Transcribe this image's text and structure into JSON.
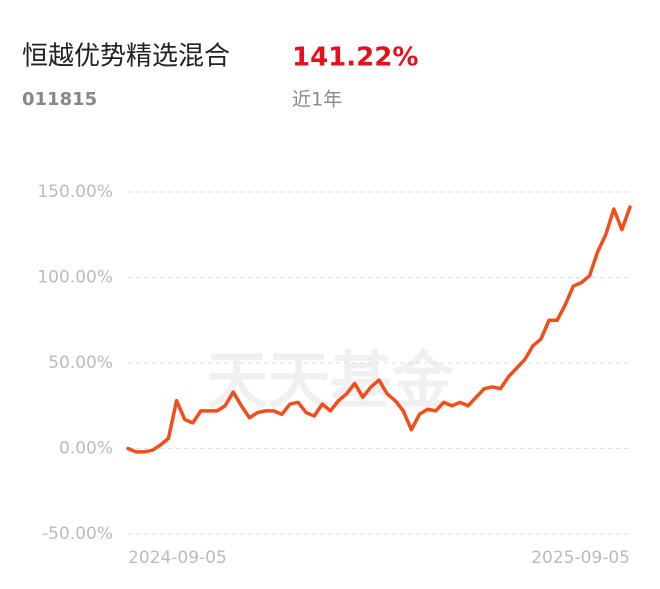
{
  "chart_data": {
    "type": "line",
    "title": "恒越优势精选混合",
    "return": "141.22%",
    "subtitle": "011815",
    "period": "近1年",
    "watermark": "天天基金",
    "categories": [
      "2024-09-05",
      null,
      null,
      null,
      null,
      null,
      null,
      null,
      null,
      null,
      null,
      null,
      null,
      null,
      null,
      null,
      null,
      null,
      null,
      null,
      null,
      null,
      null,
      null,
      null,
      null,
      null,
      null,
      null,
      null,
      null,
      null,
      null,
      null,
      null,
      null,
      null,
      null,
      null,
      null,
      null,
      null,
      null,
      null,
      null,
      null,
      null,
      null,
      null,
      null,
      null,
      null,
      null,
      null,
      null,
      null,
      null,
      null,
      null,
      null,
      null,
      null,
      "2025-09-05"
    ],
    "values": [
      0,
      -2,
      -2,
      -1,
      2,
      6,
      28,
      17,
      15,
      22,
      22,
      22,
      25,
      33,
      25,
      18,
      21,
      22,
      22,
      20,
      26,
      27,
      21,
      19,
      26,
      22,
      28,
      32,
      38,
      30,
      36,
      40,
      32,
      28,
      22,
      11,
      20,
      23,
      22,
      27,
      25,
      27,
      25,
      30,
      35,
      36,
      35,
      42,
      47,
      52,
      60,
      64,
      75,
      75,
      84,
      95,
      97,
      101,
      115,
      125,
      140,
      128,
      141.22
    ],
    "color": "#f04e1b",
    "ylim": [
      -50,
      150
    ],
    "yticks": [
      {
        "value": -50,
        "label": "-50.00%"
      },
      {
        "value": 0,
        "label": "0.00%"
      },
      {
        "value": 50,
        "label": "50.00%"
      },
      {
        "value": 100,
        "label": "100.00%"
      },
      {
        "value": 150,
        "label": "150.00%"
      }
    ],
    "grid": true
  }
}
